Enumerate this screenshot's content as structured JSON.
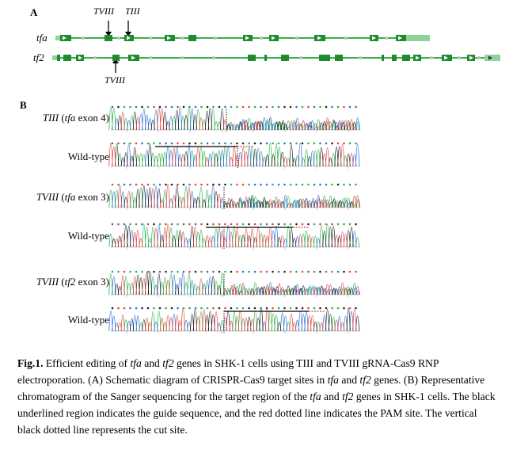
{
  "panel_a": {
    "label": "A",
    "genes": [
      {
        "name": "tfa"
      },
      {
        "name": "tf2"
      }
    ],
    "markers_top": [
      "TVIII",
      "TIII"
    ],
    "marker_bottom": "TVIII"
  },
  "panel_b": {
    "label": "B",
    "rows": [
      {
        "main": "TIII",
        "paren_open": " (",
        "gene": "tfa",
        "exon": " exon 4)",
        "type": "mutant"
      },
      {
        "main": "Wild-type",
        "type": "wt"
      },
      {
        "main": "TVIII",
        "paren_open": " (",
        "gene": "tfa",
        "exon": " exon 3)",
        "type": "mutant"
      },
      {
        "main": "Wild-type",
        "type": "wt"
      },
      {
        "main": "TVIII",
        "paren_open": " (",
        "gene": "tf2",
        "exon": " exon 3)",
        "type": "mutant"
      },
      {
        "main": "Wild-type",
        "type": "wt"
      }
    ]
  },
  "caption": {
    "fig_label": "Fig.1.",
    "t1": " Efficient editing of ",
    "g1": "tfa",
    "t2": " and ",
    "g2": "tf2",
    "t3": " genes in SHK-1 cells using TIII and TVIII gRNA-Cas9 RNP electroporation. (A) Schematic diagram of CRISPR-Cas9 target sites in ",
    "g3": "tfa",
    "t4": " and ",
    "g4": "tf2",
    "t5": " genes. (B) Representative chromatogram of the Sanger sequencing for the target region of the ",
    "g5": "tfa",
    "t6": " and ",
    "g6": "tf2",
    "t7": " genes in SHK-1 cells. The black underlined region indicates the guide sequence, and the red dotted line indicates the PAM site. The vertical black dotted line represents the cut site."
  },
  "colors": {
    "gene_line": "#36b04a",
    "exon": "#1f8a2e",
    "utr": "#8fd39a",
    "trace_a": "#2bb24c",
    "trace_c": "#2f6fd6",
    "trace_g": "#222222",
    "trace_t": "#e0443c",
    "trace_n": "#37c7c7"
  }
}
